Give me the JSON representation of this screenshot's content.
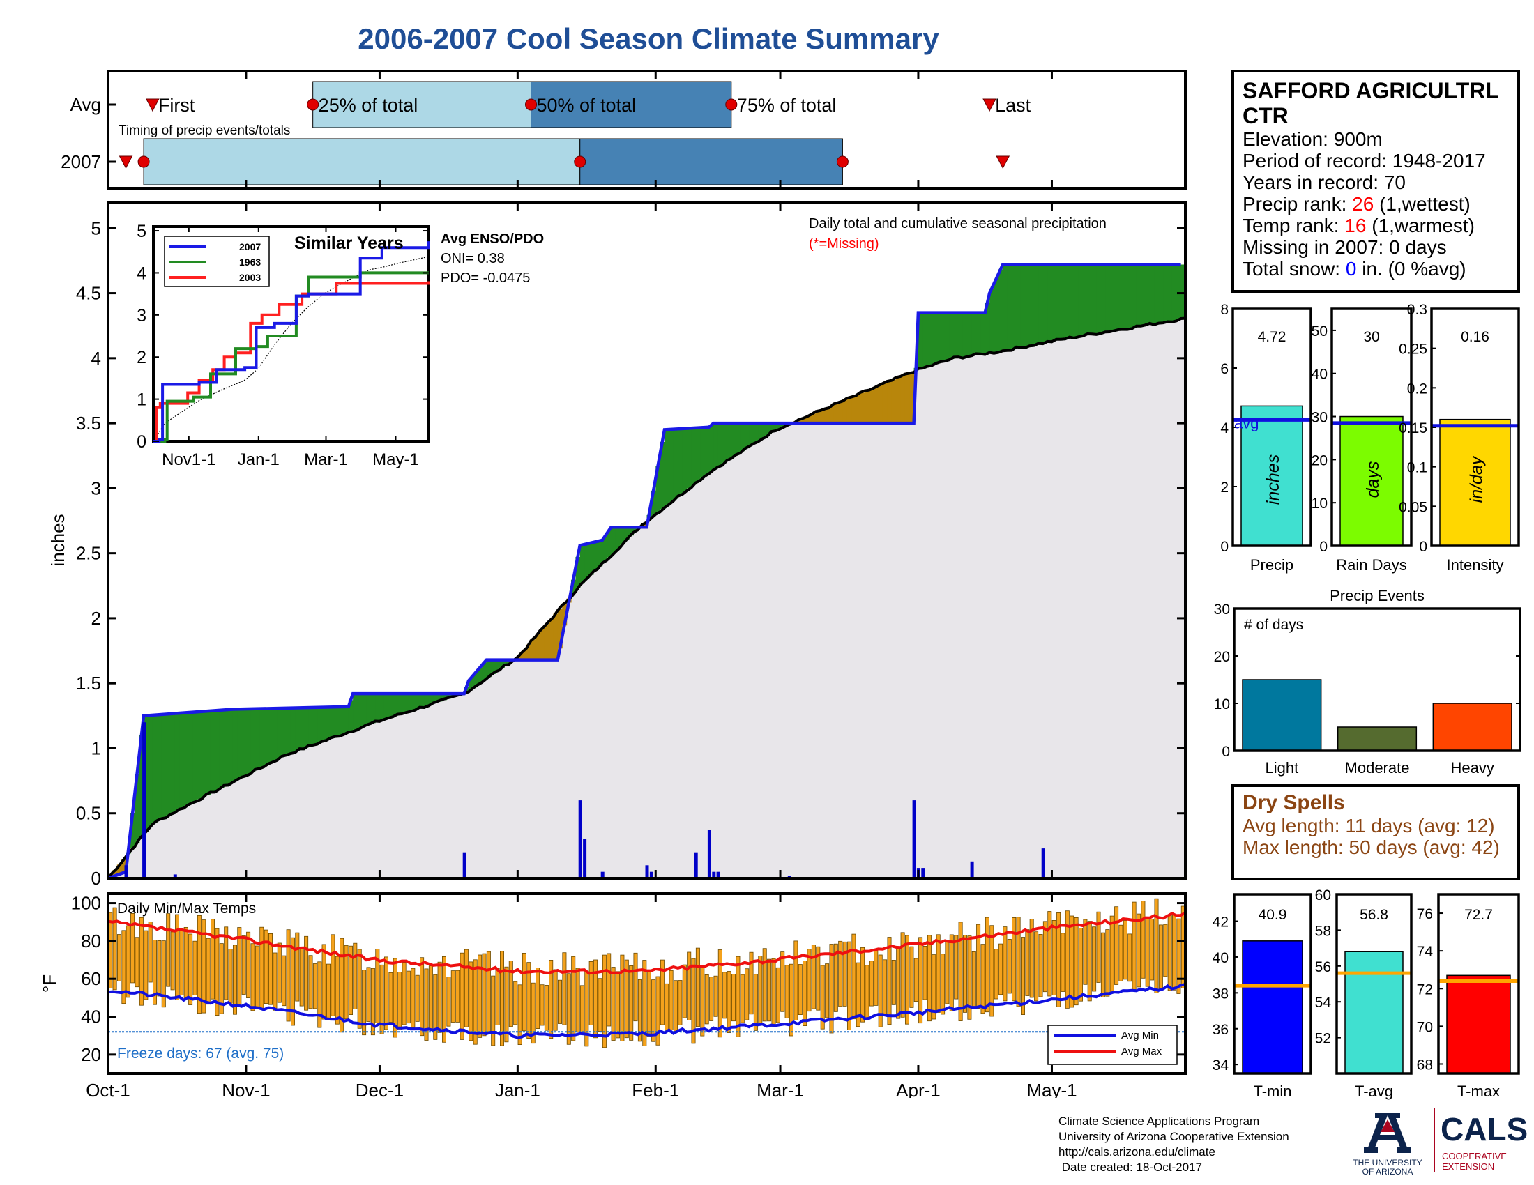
{
  "title": "2006-2007 Cool Season Climate Summary",
  "colors": {
    "title": "#1f4e96",
    "light_blue": "#add8e6",
    "steel_blue": "#4682b4",
    "green": "#228b22",
    "gold": "#b8860b",
    "fill_gray": "#e8e6ea",
    "obs_blue": "#1a1ae6",
    "rank_red": "#ff0000",
    "dry_brown": "#8b4513",
    "temp_bar": "#f4a21c",
    "freeze": "#1f6fc8"
  },
  "timing": {
    "rows": [
      "Avg",
      "2007"
    ],
    "caption": "Timing of precip events/totals",
    "labels": {
      "first": "First",
      "p25": "25% of total",
      "p50": "50% of total",
      "p75": "75% of total",
      "last": "Last"
    },
    "avg_doy": {
      "first": 10,
      "p25": 46,
      "p50": 95,
      "p75": 140,
      "last": 198
    },
    "y2007_doy": {
      "first": 4,
      "p25": 8,
      "p50": 106,
      "p75": 165,
      "last": 201
    }
  },
  "main_chart": {
    "ylabel": "inches",
    "yticks": [
      0,
      0.5,
      1,
      1.5,
      2,
      2.5,
      3,
      3.5,
      4,
      4.5,
      5
    ],
    "ylim": [
      0,
      5.2
    ],
    "month_labels": [
      "Oct-1",
      "Nov-1",
      "Dec-1",
      "Jan-1",
      "Feb-1",
      "Mar-1",
      "Apr-1",
      "May-1"
    ],
    "month_doy": [
      0,
      31,
      61,
      92,
      123,
      151,
      182,
      212
    ],
    "days": 242,
    "note": "Daily total and cumulative seasonal precipitation",
    "missing_note": "(*=Missing)"
  },
  "inset": {
    "title": "Similar Years",
    "legend": [
      "2007",
      "1963",
      "2003"
    ],
    "series_colors": [
      "#1a1ae6",
      "#228b22",
      "#ff2020"
    ],
    "yticks": [
      0,
      1,
      2,
      3,
      4,
      5
    ],
    "xticks": [
      "Nov1-1",
      "Jan-1",
      "Mar-1",
      "May-1"
    ],
    "enso_title": "Avg ENSO/PDO",
    "oni": "ONI= 0.38",
    "pdo": "PDO= -0.0475"
  },
  "station": {
    "name": "SAFFORD AGRICULTRL CTR",
    "name_line1": "SAFFORD AGRICULTRL",
    "name_line2": "CTR",
    "elevation": "Elevation: 900m",
    "period": "Period of record: 1948-2017",
    "years": "Years in record: 70",
    "precip_rank_prefix": "Precip rank: ",
    "precip_rank_value": "26",
    "precip_rank_suffix": " (1,wettest)",
    "temp_rank_prefix": "Temp rank: ",
    "temp_rank_value": "16",
    "temp_rank_suffix": " (1,warmest)",
    "missing": "Missing in 2007: 0 days",
    "snow_prefix": "Total snow: ",
    "snow_value": "0",
    "snow_suffix": " in. (0 %avg)"
  },
  "summary_bars": [
    {
      "label": "Precip",
      "unit": "inches",
      "value": 4.72,
      "display": "4.72",
      "avg": 4.25,
      "ymax": 8,
      "ticks": [
        "0",
        "2",
        "4",
        "6",
        "8"
      ],
      "color": "#40e0d0",
      "avg_label": "avg"
    },
    {
      "label": "Rain Days",
      "unit": "days",
      "value": 30,
      "display": "30",
      "avg": 28.5,
      "ymax": 55,
      "ticks": [
        "0",
        "10",
        "20",
        "30",
        "40",
        "50"
      ],
      "color": "#7cfc00"
    },
    {
      "label": "Intensity",
      "unit": "in/day",
      "value": 0.16,
      "display": "0.16",
      "avg": 0.152,
      "ymax": 0.3,
      "ticks": [
        "0",
        "0.05",
        "0.1",
        "0.15",
        "0.2",
        "0.25",
        "0.3"
      ],
      "color": "#ffd700"
    }
  ],
  "events": {
    "title": "Precip Events",
    "ylabel": "# of days",
    "categories": [
      "Light",
      "Moderate",
      "Heavy"
    ],
    "values": [
      15,
      5,
      10
    ],
    "colors": [
      "#00789e",
      "#556b2f",
      "#ff4500"
    ],
    "yticks": [
      "0",
      "10",
      "20",
      "30"
    ]
  },
  "dry_spells": {
    "title": "Dry Spells",
    "avg": "Avg length: 11 days (avg: 12)",
    "max": "Max length: 50 days (avg: 42)"
  },
  "temp_chart": {
    "ylabel": "°F",
    "title": "Daily Min/Max Temps",
    "yticks": [
      20,
      40,
      60,
      80,
      100
    ],
    "freeze_text": "Freeze days: 67 (avg. 75)",
    "freeze_line": 32,
    "legend": [
      "Avg Min",
      "Avg Max"
    ]
  },
  "temp_bars": [
    {
      "label": "T-min",
      "value": 40.9,
      "display": "40.9",
      "avg": 38.4,
      "ymin": 33.5,
      "ymax": 43.5,
      "ticks": [
        "34",
        "36",
        "38",
        "40",
        "42"
      ],
      "color": "#0000ff"
    },
    {
      "label": "T-avg",
      "value": 56.8,
      "display": "56.8",
      "avg": 55.6,
      "ymin": 50,
      "ymax": 60,
      "ticks": [
        "52",
        "54",
        "56",
        "58",
        "60"
      ],
      "color": "#40e0d0"
    },
    {
      "label": "T-max",
      "value": 72.7,
      "display": "72.7",
      "avg": 72.4,
      "ymin": 67.5,
      "ymax": 77,
      "ticks": [
        "68",
        "70",
        "72",
        "74",
        "76"
      ],
      "color": "#ff0000"
    }
  ],
  "credits": [
    "Climate Science Applications Program",
    "University of Arizona Cooperative Extension",
    "http://cals.arizona.edu/climate",
    " Date created: 18-Oct-2017"
  ],
  "logos": {
    "ua_line1": "THE UNIVERSITY",
    "ua_line2": "OF ARIZONA",
    "cals": "CALS",
    "cals_sub1": "COOPERATIVE",
    "cals_sub2": "EXTENSION"
  },
  "chart_data": [
    {
      "type": "line",
      "title": "",
      "ylabel": "inches",
      "ylim": [
        0,
        5.2
      ],
      "x_units": "day of season (Oct-1 = 0)",
      "series": [
        {
          "name": "2007",
          "x": [
            0,
            4,
            8,
            28,
            54,
            55,
            80,
            81,
            85,
            101,
            106,
            111,
            113,
            121,
            125,
            135,
            136,
            181,
            182,
            197,
            198,
            201,
            241
          ],
          "y": [
            0,
            0.05,
            1.25,
            1.3,
            1.32,
            1.42,
            1.42,
            1.52,
            1.68,
            1.68,
            2.56,
            2.6,
            2.7,
            2.7,
            3.45,
            3.47,
            3.5,
            3.5,
            4.35,
            4.35,
            4.5,
            4.72,
            4.72
          ]
        },
        {
          "name": "Avg",
          "x": [
            0,
            10,
            20,
            40,
            60,
            80,
            92,
            106,
            120,
            135,
            150,
            165,
            181,
            190,
            200,
            215,
            241
          ],
          "y": [
            0,
            0.42,
            0.6,
            0.95,
            1.2,
            1.42,
            1.7,
            2.25,
            2.72,
            3.12,
            3.45,
            3.67,
            3.9,
            4.0,
            4.05,
            4.15,
            4.3
          ]
        }
      ],
      "daily_precip": {
        "x": [
          4,
          8,
          15,
          80,
          106,
          107,
          111,
          121,
          122,
          132,
          135,
          136,
          137,
          153,
          181,
          182,
          183,
          194,
          210
        ],
        "y": [
          0.1,
          1.2,
          0.03,
          0.2,
          0.6,
          0.3,
          0.05,
          0.1,
          0.05,
          0.2,
          0.37,
          0.05,
          0.05,
          0.02,
          0.6,
          0.08,
          0.08,
          0.13,
          0.23
        ]
      }
    },
    {
      "type": "line",
      "title": "Similar Years",
      "xticks": [
        "Nov1-1",
        "Jan-1",
        "Mar-1",
        "May-1"
      ],
      "ylim": [
        0,
        5
      ],
      "series": [
        {
          "name": "2007",
          "x": [
            0,
            5,
            8,
            40,
            55,
            80,
            90,
            106,
            125,
            136,
            181,
            200,
            241
          ],
          "y": [
            0,
            0.05,
            1.35,
            1.4,
            1.7,
            1.75,
            2.7,
            2.8,
            3.45,
            3.5,
            4.35,
            4.6,
            4.75
          ]
        },
        {
          "name": "1963",
          "x": [
            0,
            10,
            12,
            35,
            50,
            72,
            90,
            100,
            125,
            136,
            181,
            241
          ],
          "y": [
            0,
            0.05,
            0.95,
            1.05,
            1.6,
            2.2,
            2.25,
            2.5,
            3.45,
            3.9,
            4.0,
            4.0
          ]
        },
        {
          "name": "2003",
          "x": [
            0,
            3,
            6,
            30,
            40,
            52,
            62,
            72,
            85,
            95,
            110,
            130,
            160,
            241
          ],
          "y": [
            0,
            0.8,
            0.9,
            1.15,
            1.45,
            1.7,
            2.0,
            2.1,
            2.8,
            3.0,
            3.25,
            3.5,
            3.75,
            3.8
          ]
        }
      ]
    },
    {
      "type": "bar",
      "categories": [
        "Precip",
        "Rain Days",
        "Intensity"
      ],
      "values": [
        4.72,
        30,
        0.16
      ]
    },
    {
      "type": "bar",
      "title": "Precip Events",
      "ylabel": "# of days",
      "categories": [
        "Light",
        "Moderate",
        "Heavy"
      ],
      "values": [
        15,
        5,
        10
      ]
    },
    {
      "type": "bar",
      "categories": [
        "T-min",
        "T-avg",
        "T-max"
      ],
      "values": [
        40.9,
        56.8,
        72.7
      ]
    },
    {
      "type": "line",
      "title": "Daily Min/Max Temps",
      "ylabel": "°F",
      "ylim": [
        10,
        105
      ],
      "series": [
        {
          "name": "Avg Min",
          "x": [
            0,
            30,
            60,
            92,
            120,
            150,
            181,
            212,
            241
          ],
          "y": [
            54,
            46,
            36,
            30,
            31,
            36,
            42,
            49,
            56
          ]
        },
        {
          "name": "Avg Max",
          "x": [
            0,
            30,
            60,
            92,
            120,
            150,
            181,
            212,
            241
          ],
          "y": [
            90,
            81,
            70,
            64,
            64,
            70,
            78,
            87,
            94
          ]
        }
      ]
    }
  ]
}
